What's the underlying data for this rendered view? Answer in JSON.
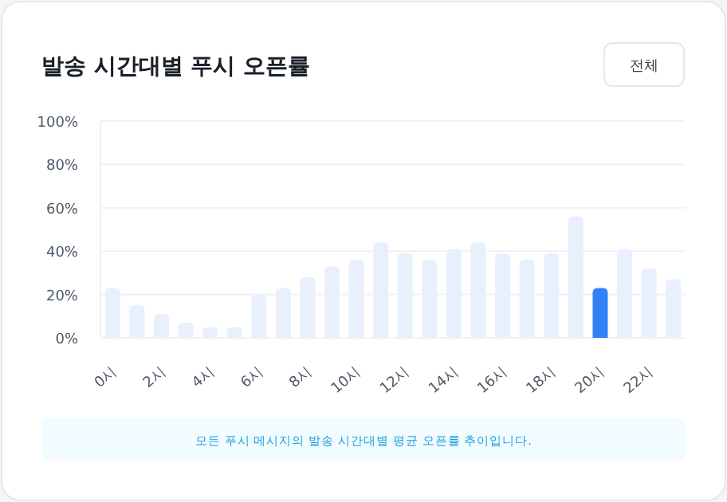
{
  "chart_data": {
    "type": "bar",
    "title": "발송 시간대별 푸시 오픈률",
    "categories": [
      "0시",
      null,
      "2시",
      null,
      "4시",
      null,
      "6시",
      null,
      "8시",
      null,
      "10시",
      null,
      "12시",
      null,
      "14시",
      null,
      "16시",
      null,
      "18시",
      null,
      "20시",
      null,
      "22시",
      null
    ],
    "values": [
      23,
      15,
      11,
      7,
      5,
      5,
      20,
      23,
      28,
      33,
      36,
      44,
      39,
      36,
      41,
      44,
      39,
      36,
      39,
      56,
      23,
      41,
      32,
      27
    ],
    "colors": [
      "#e8effd",
      "#e8effd",
      "#e8effd",
      "#e8effd",
      "#e8effd",
      "#e8effd",
      "#e8effd",
      "#e8effd",
      "#e8effd",
      "#e8effd",
      "#e8effd",
      "#e8effd",
      "#e8effd",
      "#e8effd",
      "#e8effd",
      "#e8effd",
      "#e8effd",
      "#e8effd",
      "#e8effd",
      "#e8effd",
      "#3182f6",
      "#e8effd",
      "#e8effd",
      "#e8effd"
    ],
    "ylim": [
      0,
      100
    ],
    "yticks": [
      {
        "value": 0,
        "label": "0%"
      },
      {
        "value": 20,
        "label": "20%"
      },
      {
        "value": 40,
        "label": "40%"
      },
      {
        "value": 60,
        "label": "60%"
      },
      {
        "value": 80,
        "label": "80%"
      },
      {
        "value": 100,
        "label": "100%"
      }
    ],
    "grid": "y",
    "annotations": [
      "전체",
      "모든 푸시 메시지의 발송 시간대별 평균 오픈률 추이입니다."
    ]
  }
}
